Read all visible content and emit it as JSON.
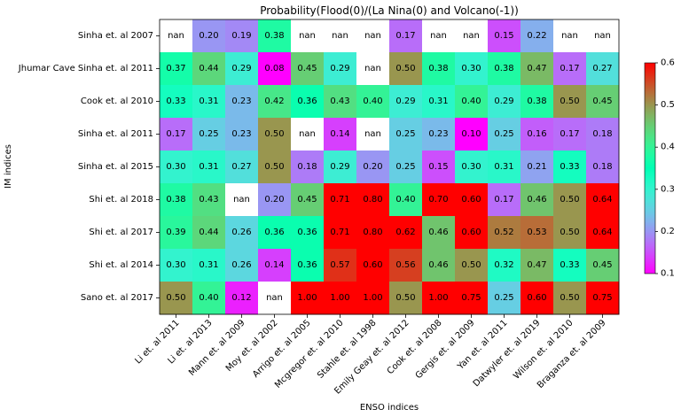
{
  "chart_data": {
    "type": "heatmap",
    "title": "Probability(Flood(0)/(La Nina(0) and Volcano(-1))",
    "xlabel": "ENSO indices",
    "ylabel": "IM indices",
    "x_categories": [
      "Li et. al 2011",
      "Li et. al 2013",
      "Mann et. al 2009",
      "Moy et. al 2002",
      "Arrigo et. al 2005",
      "Mcgregor et. al 2010",
      "Stahle et. al 1998",
      "Emily Geay et. al 2012",
      "Cook et. al 2008",
      "Gergis et. al 2009",
      "Yan et. al 2011",
      "Datwyler et. al 2019",
      "Wilson et. al 2010",
      "Braganza et. al 2009"
    ],
    "y_categories": [
      "Sinha et. al 2007",
      "Jhumar Cave Sinha et. al 2011",
      "Cook et. al 2010",
      "Sinha et. al 2011",
      "Sinha et. al 2015",
      "Shi et. al 2018",
      "Shi et. al 2017",
      "Shi et. al 2014",
      "Sano et. al 2017"
    ],
    "values": [
      [
        null,
        0.2,
        0.19,
        0.38,
        null,
        null,
        null,
        0.17,
        null,
        null,
        0.15,
        0.22,
        null,
        null
      ],
      [
        0.37,
        0.44,
        0.29,
        0.08,
        0.45,
        0.29,
        null,
        0.5,
        0.38,
        0.3,
        0.38,
        0.47,
        0.17,
        0.27
      ],
      [
        0.33,
        0.31,
        0.23,
        0.42,
        0.36,
        0.43,
        0.4,
        0.29,
        0.31,
        0.4,
        0.29,
        0.38,
        0.5,
        0.45
      ],
      [
        0.17,
        0.25,
        0.23,
        0.5,
        null,
        0.14,
        null,
        0.25,
        0.23,
        0.1,
        0.25,
        0.16,
        0.17,
        0.18
      ],
      [
        0.3,
        0.31,
        0.27,
        0.5,
        0.18,
        0.29,
        0.2,
        0.25,
        0.15,
        0.3,
        0.31,
        0.21,
        0.33,
        0.18
      ],
      [
        0.38,
        0.43,
        null,
        0.2,
        0.45,
        0.71,
        0.8,
        0.4,
        0.7,
        0.6,
        0.17,
        0.46,
        0.5,
        0.64
      ],
      [
        0.39,
        0.44,
        0.26,
        0.36,
        0.36,
        0.71,
        0.8,
        0.62,
        0.46,
        0.6,
        0.52,
        0.53,
        0.5,
        0.64
      ],
      [
        0.3,
        0.31,
        0.26,
        0.14,
        0.36,
        0.57,
        0.6,
        0.56,
        0.46,
        0.5,
        0.32,
        0.47,
        0.33,
        0.45
      ],
      [
        0.5,
        0.4,
        0.12,
        null,
        1.0,
        1.0,
        1.0,
        0.5,
        1.0,
        0.75,
        0.25,
        0.6,
        0.5,
        0.75
      ]
    ],
    "missing_label": "nan",
    "colormap": "rainbow",
    "vmin": 0.1,
    "vmax": 0.6,
    "colorbar_ticks": [
      0.1,
      0.2,
      0.3,
      0.4,
      0.5,
      0.6
    ],
    "colorbar_tick_labels": [
      "0.1",
      "0.2",
      "0.3",
      "0.4",
      "0.5",
      "0.6"
    ],
    "nan_color": "#ffffff"
  }
}
